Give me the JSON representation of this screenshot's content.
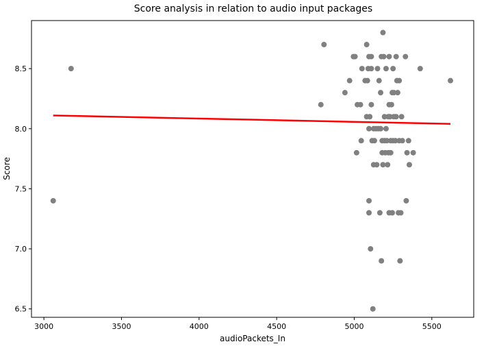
{
  "chart_data": {
    "type": "scatter",
    "title": "Score analysis in relation to audio input packages",
    "xlabel": "audioPackets_In",
    "ylabel": "Score",
    "xlim": [
      2920,
      5770
    ],
    "ylim": [
      6.43,
      8.9
    ],
    "xticks": [
      3000,
      3500,
      4000,
      4500,
      5000,
      5500
    ],
    "yticks": [
      6.5,
      7.0,
      7.5,
      8.0,
      8.5
    ],
    "xtick_labels": [
      "3000",
      "3500",
      "4000",
      "4500",
      "5000",
      "5500"
    ],
    "ytick_labels": [
      "6.5",
      "7.0",
      "7.5",
      "8.0",
      "8.5"
    ],
    "grid": false,
    "legend": "none",
    "series": [
      {
        "kind": "points",
        "color": "#808080",
        "points": [
          [
            3060,
            7.4
          ],
          [
            3175,
            8.5
          ],
          [
            4785,
            8.2
          ],
          [
            4805,
            8.7
          ],
          [
            4940,
            8.3
          ],
          [
            4970,
            8.4
          ],
          [
            4995,
            8.6
          ],
          [
            5005,
            8.6
          ],
          [
            5015,
            7.8
          ],
          [
            5020,
            8.2
          ],
          [
            5040,
            8.2
          ],
          [
            5045,
            7.9
          ],
          [
            5050,
            8.5
          ],
          [
            5070,
            8.4
          ],
          [
            5080,
            8.7
          ],
          [
            5080,
            8.1
          ],
          [
            5085,
            8.4
          ],
          [
            5090,
            8.5
          ],
          [
            5095,
            8.6
          ],
          [
            5095,
            8.0
          ],
          [
            5095,
            7.4
          ],
          [
            5095,
            7.3
          ],
          [
            5100,
            8.1
          ],
          [
            5105,
            7.0
          ],
          [
            5110,
            8.6
          ],
          [
            5110,
            8.5
          ],
          [
            5110,
            8.2
          ],
          [
            5115,
            7.9
          ],
          [
            5120,
            6.5
          ],
          [
            5125,
            8.0
          ],
          [
            5125,
            7.7
          ],
          [
            5130,
            7.9
          ],
          [
            5140,
            8.0
          ],
          [
            5145,
            7.7
          ],
          [
            5150,
            8.5
          ],
          [
            5155,
            8.0
          ],
          [
            5160,
            8.4
          ],
          [
            5165,
            7.3
          ],
          [
            5170,
            8.3
          ],
          [
            5170,
            8.0
          ],
          [
            5175,
            6.9
          ],
          [
            5175,
            8.6
          ],
          [
            5180,
            7.9
          ],
          [
            5180,
            7.8
          ],
          [
            5185,
            8.8
          ],
          [
            5185,
            7.7
          ],
          [
            5190,
            8.6
          ],
          [
            5195,
            8.1
          ],
          [
            5195,
            7.9
          ],
          [
            5200,
            7.8
          ],
          [
            5205,
            8.0
          ],
          [
            5205,
            8.5
          ],
          [
            5210,
            7.9
          ],
          [
            5215,
            7.7
          ],
          [
            5220,
            8.1
          ],
          [
            5220,
            7.8
          ],
          [
            5225,
            8.6
          ],
          [
            5225,
            8.2
          ],
          [
            5225,
            7.3
          ],
          [
            5230,
            8.1
          ],
          [
            5235,
            7.9
          ],
          [
            5235,
            7.8
          ],
          [
            5240,
            8.2
          ],
          [
            5245,
            8.3
          ],
          [
            5245,
            7.3
          ],
          [
            5250,
            8.5
          ],
          [
            5250,
            7.9
          ],
          [
            5255,
            8.3
          ],
          [
            5255,
            8.1
          ],
          [
            5265,
            7.9
          ],
          [
            5270,
            8.1
          ],
          [
            5270,
            8.6
          ],
          [
            5275,
            8.4
          ],
          [
            5280,
            8.3
          ],
          [
            5285,
            7.3
          ],
          [
            5290,
            7.9
          ],
          [
            5290,
            8.4
          ],
          [
            5295,
            6.9
          ],
          [
            5300,
            7.3
          ],
          [
            5305,
            8.1
          ],
          [
            5310,
            7.9
          ],
          [
            5330,
            8.6
          ],
          [
            5335,
            7.4
          ],
          [
            5340,
            7.8
          ],
          [
            5350,
            7.9
          ],
          [
            5355,
            7.7
          ],
          [
            5380,
            7.8
          ],
          [
            5425,
            8.5
          ],
          [
            5620,
            8.4
          ]
        ]
      },
      {
        "kind": "line",
        "color": "#ff0000",
        "x": [
          3060,
          5620
        ],
        "y": [
          8.11,
          8.04
        ]
      }
    ]
  }
}
